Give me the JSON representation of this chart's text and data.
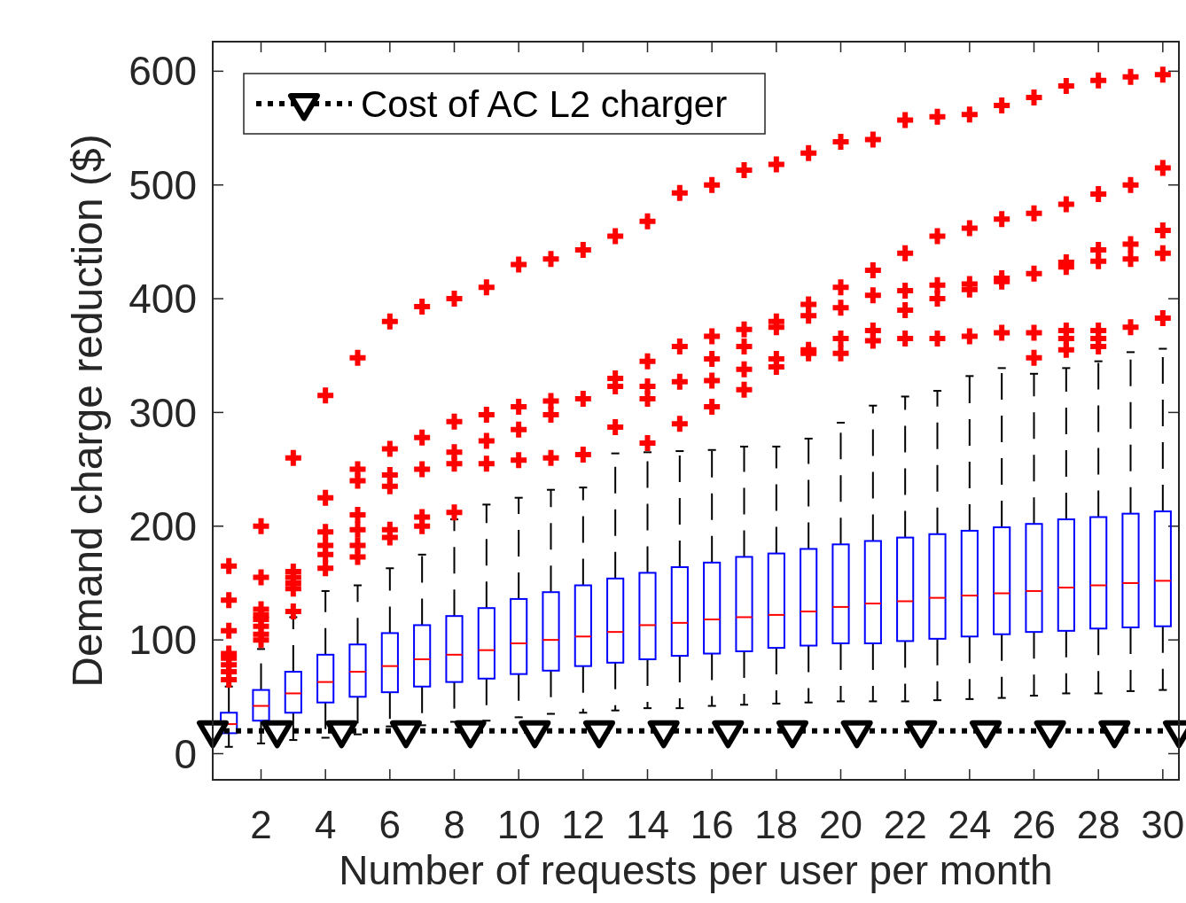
{
  "chart_data": {
    "type": "box",
    "xlabel": "Number of requests per user per month",
    "ylabel": "Demand charge reduction ($)",
    "x": [
      1,
      2,
      3,
      4,
      5,
      6,
      7,
      8,
      9,
      10,
      11,
      12,
      13,
      14,
      15,
      16,
      17,
      18,
      19,
      20,
      21,
      22,
      23,
      24,
      25,
      26,
      27,
      28,
      29,
      30
    ],
    "xlim": [
      0.5,
      30.5
    ],
    "xticks": [
      2,
      4,
      6,
      8,
      10,
      12,
      14,
      16,
      18,
      20,
      22,
      24,
      26,
      28,
      30
    ],
    "ylim": [
      -23,
      626
    ],
    "yticks": [
      0,
      100,
      200,
      300,
      400,
      500,
      600
    ],
    "legend": "top left",
    "series": [
      {
        "color": "#0000ff",
        "boxes": [
          {
            "low": 6,
            "q1": 18,
            "median": 26,
            "q3": 36,
            "high": 59,
            "outliers": [
              65,
              72,
              78,
              84,
              88,
              108,
              135,
              165
            ]
          },
          {
            "low": 9,
            "q1": 29,
            "median": 42,
            "q3": 56,
            "high": 92,
            "outliers": [
              100,
              105,
              112,
              118,
              122,
              127,
              155,
              200
            ]
          },
          {
            "low": 12,
            "q1": 36,
            "median": 53,
            "q3": 72,
            "high": 120,
            "outliers": [
              125,
              145,
              150,
              155,
              160,
              260
            ]
          },
          {
            "low": 14,
            "q1": 45,
            "median": 63,
            "q3": 87,
            "high": 143,
            "outliers": [
              163,
              175,
              183,
              195,
              225,
              315
            ]
          },
          {
            "low": 17,
            "q1": 50,
            "median": 72,
            "q3": 96,
            "high": 148,
            "outliers": [
              173,
              183,
              197,
              210,
              240,
              250,
              348
            ]
          },
          {
            "low": 24,
            "q1": 54,
            "median": 77,
            "q3": 106,
            "high": 163,
            "outliers": [
              190,
              197,
              235,
              245,
              268,
              380
            ]
          },
          {
            "low": 25,
            "q1": 59,
            "median": 83,
            "q3": 113,
            "high": 175,
            "outliers": [
              200,
              208,
              250,
              278,
              393
            ]
          },
          {
            "low": 28,
            "q1": 63,
            "median": 87,
            "q3": 121,
            "high": 206,
            "outliers": [
              212,
              255,
              265,
              292,
              400
            ]
          },
          {
            "low": 29,
            "q1": 66,
            "median": 91,
            "q3": 128,
            "high": 219,
            "outliers": [
              255,
              275,
              298,
              410
            ]
          },
          {
            "low": 32,
            "q1": 70,
            "median": 97,
            "q3": 136,
            "high": 225,
            "outliers": [
              258,
              285,
              305,
              430
            ]
          },
          {
            "low": 35,
            "q1": 73,
            "median": 100,
            "q3": 142,
            "high": 232,
            "outliers": [
              260,
              298,
              310,
              435
            ]
          },
          {
            "low": 36,
            "q1": 77,
            "median": 103,
            "q3": 148,
            "high": 234,
            "outliers": [
              263,
              312,
              443
            ]
          },
          {
            "low": 38,
            "q1": 80,
            "median": 107,
            "q3": 154,
            "high": 264,
            "outliers": [
              287,
              323,
              330,
              455
            ]
          },
          {
            "low": 40,
            "q1": 83,
            "median": 113,
            "q3": 159,
            "high": 265,
            "outliers": [
              273,
              312,
              323,
              345,
              468
            ]
          },
          {
            "low": 40,
            "q1": 86,
            "median": 115,
            "q3": 164,
            "high": 266,
            "outliers": [
              290,
              327,
              358,
              493
            ]
          },
          {
            "low": 42,
            "q1": 88,
            "median": 118,
            "q3": 168,
            "high": 267,
            "outliers": [
              305,
              328,
              347,
              367,
              500
            ]
          },
          {
            "low": 43,
            "q1": 90,
            "median": 120,
            "q3": 173,
            "high": 270,
            "outliers": [
              320,
              338,
              358,
              373,
              513
            ]
          },
          {
            "low": 44,
            "q1": 93,
            "median": 122,
            "q3": 176,
            "high": 270,
            "outliers": [
              340,
              347,
              375,
              380,
              518
            ]
          },
          {
            "low": 45,
            "q1": 95,
            "median": 125,
            "q3": 180,
            "high": 277,
            "outliers": [
              352,
              355,
              385,
              395,
              528
            ]
          },
          {
            "low": 46,
            "q1": 97,
            "median": 129,
            "q3": 184,
            "high": 291,
            "outliers": [
              352,
              365,
              392,
              410,
              538
            ]
          },
          {
            "low": 46,
            "q1": 97,
            "median": 132,
            "q3": 187,
            "high": 306,
            "outliers": [
              363,
              372,
              403,
              425,
              540
            ]
          },
          {
            "low": 46,
            "q1": 99,
            "median": 134,
            "q3": 190,
            "high": 314,
            "outliers": [
              365,
              390,
              407,
              440,
              557
            ]
          },
          {
            "low": 47,
            "q1": 101,
            "median": 137,
            "q3": 193,
            "high": 319,
            "outliers": [
              365,
              400,
              412,
              455,
              560
            ]
          },
          {
            "low": 48,
            "q1": 103,
            "median": 139,
            "q3": 196,
            "high": 332,
            "outliers": [
              367,
              408,
              413,
              462,
              562
            ]
          },
          {
            "low": 49,
            "q1": 105,
            "median": 141,
            "q3": 199,
            "high": 339,
            "outliers": [
              370,
              415,
              418,
              470,
              570
            ]
          },
          {
            "low": 51,
            "q1": 107,
            "median": 143,
            "q3": 202,
            "high": 334,
            "outliers": [
              348,
              370,
              422,
              475,
              577
            ]
          },
          {
            "low": 53,
            "q1": 108,
            "median": 146,
            "q3": 206,
            "high": 339,
            "outliers": [
              355,
              365,
              372,
              428,
              432,
              483,
              587
            ]
          },
          {
            "low": 53,
            "q1": 110,
            "median": 148,
            "q3": 208,
            "high": 345,
            "outliers": [
              358,
              365,
              372,
              433,
              443,
              492,
              592
            ]
          },
          {
            "low": 55,
            "q1": 111,
            "median": 150,
            "q3": 211,
            "high": 353,
            "outliers": [
              375,
              435,
              448,
              500,
              595
            ]
          },
          {
            "low": 56,
            "q1": 112,
            "median": 152,
            "q3": 213,
            "high": 356,
            "outliers": [
              383,
              440,
              460,
              515,
              597
            ]
          }
        ]
      },
      {
        "type": "line",
        "name": "Cost of AC L2 charger",
        "color": "#000000",
        "marker": "triangle",
        "line_style": "dotted",
        "x": [
          0.5,
          2.5,
          4.5,
          6.5,
          8.5,
          10.5,
          12.5,
          14.5,
          16.5,
          18.5,
          20.5,
          22.5,
          24.5,
          26.5,
          28.5,
          30.5
        ],
        "values": [
          20,
          20,
          20,
          20,
          20,
          20,
          20,
          20,
          20,
          20,
          20,
          20,
          20,
          20,
          20,
          20
        ]
      }
    ]
  }
}
